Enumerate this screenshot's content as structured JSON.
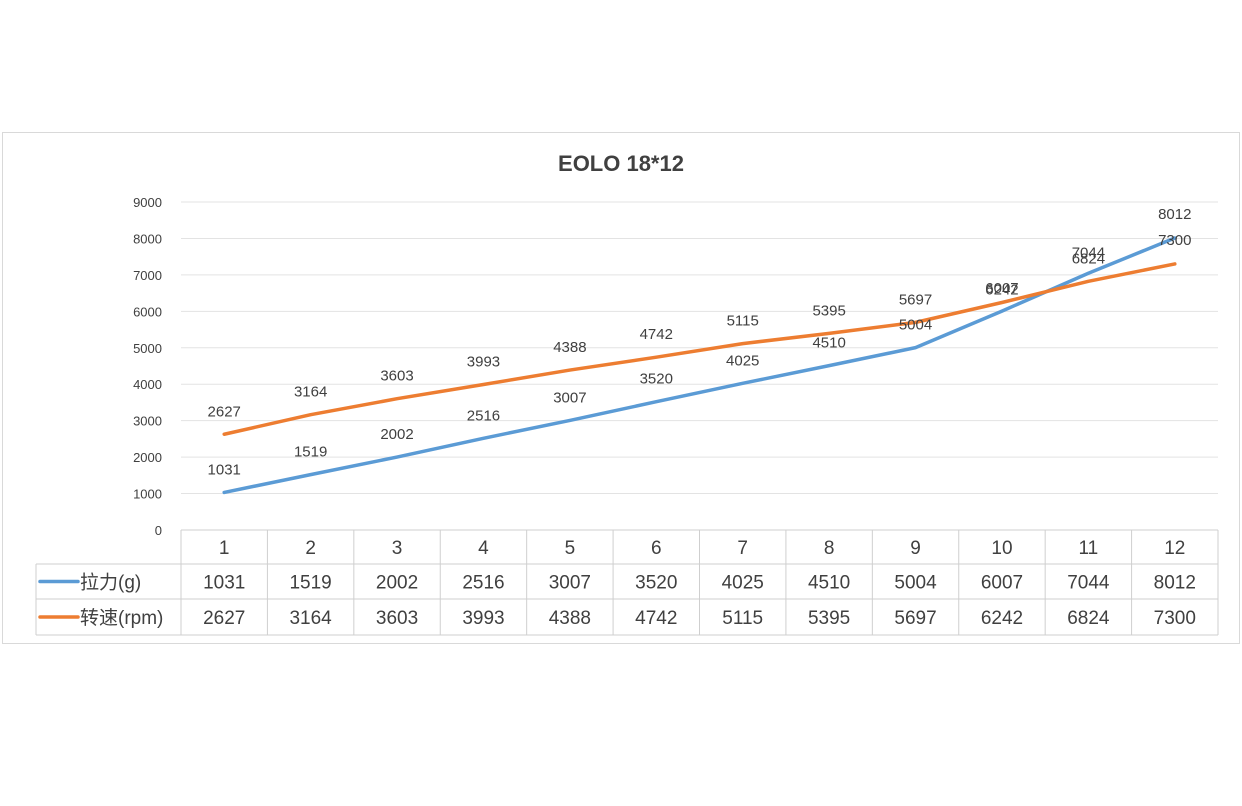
{
  "chart_data": {
    "type": "line",
    "title": "EOLO 18*12",
    "categories": [
      "1",
      "2",
      "3",
      "4",
      "5",
      "6",
      "7",
      "8",
      "9",
      "10",
      "11",
      "12"
    ],
    "yticks": [
      "0",
      "1000",
      "2000",
      "3000",
      "4000",
      "5000",
      "6000",
      "7000",
      "8000",
      "9000"
    ],
    "ylim": [
      0,
      9000
    ],
    "grid": true,
    "legend": "data-table",
    "series": [
      {
        "name": "拉力(g)",
        "color": "#5b9bd5",
        "values": [
          1031,
          1519,
          2002,
          2516,
          3007,
          3520,
          4025,
          4510,
          5004,
          6007,
          7044,
          8012
        ],
        "labels": [
          "1031",
          "1519",
          "2002",
          "2516",
          "3007",
          "3520",
          "4025",
          "4510",
          "5004",
          "6007",
          "7044",
          "8012"
        ]
      },
      {
        "name": "转速(rpm)",
        "color": "#ed7d31",
        "values": [
          2627,
          3164,
          3603,
          3993,
          4388,
          4742,
          5115,
          5395,
          5697,
          6242,
          6824,
          7300
        ],
        "labels": [
          "2627",
          "3164",
          "3603",
          "3993",
          "4388",
          "4742",
          "5115",
          "5395",
          "5697",
          "6242",
          "6824",
          "7300"
        ]
      }
    ]
  }
}
